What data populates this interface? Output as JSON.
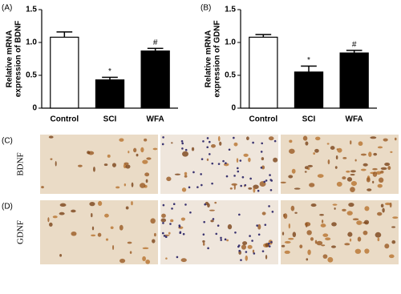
{
  "chart_data": [
    {
      "type": "bar",
      "panel": "(A)",
      "ylabel": [
        "Relative mRNA",
        "expression of BDNF"
      ],
      "categories": [
        "Control",
        "SCI",
        "WFA"
      ],
      "values": [
        1.08,
        0.43,
        0.87
      ],
      "errors": [
        0.08,
        0.04,
        0.04
      ],
      "annotations": [
        null,
        "*",
        "#"
      ],
      "colors": [
        "#ffffff",
        "#000000",
        "#000000"
      ],
      "ylim": [
        0,
        1.5
      ],
      "yticks": [
        0,
        0.5,
        {
          "value": 1,
          "label": "1.0"
        },
        1.5
      ]
    },
    {
      "type": "bar",
      "panel": "(B)",
      "ylabel": [
        "Relative mRNA",
        "expression of GDNF"
      ],
      "categories": [
        "Control",
        "SCI",
        "WFA"
      ],
      "values": [
        1.08,
        0.55,
        0.84
      ],
      "errors": [
        0.04,
        0.09,
        0.04
      ],
      "annotations": [
        null,
        "*",
        "#"
      ],
      "colors": [
        "#ffffff",
        "#000000",
        "#000000"
      ],
      "ylim": [
        0,
        1.5
      ],
      "yticks": [
        0,
        0.5,
        {
          "value": 1,
          "label": "1.0"
        },
        1.5
      ]
    }
  ],
  "image_rows": [
    {
      "panel": "(C)",
      "label": "BDNF"
    },
    {
      "panel": "(D)",
      "label": "GDNF"
    }
  ]
}
